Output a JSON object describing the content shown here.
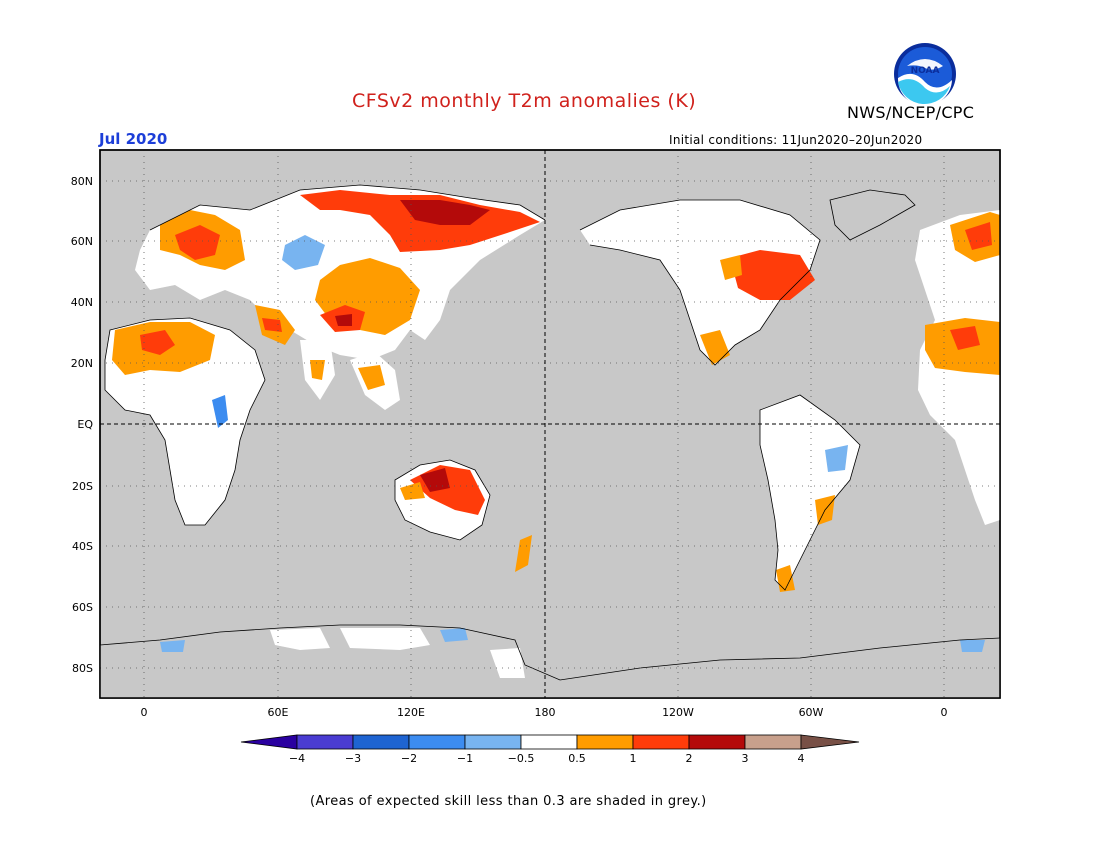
{
  "header": {
    "title": "CFSv2 monthly T2m anomalies (K)",
    "month": "Jul 2020",
    "initial_conditions": "Initial conditions: 11Jun2020–20Jun2020",
    "agency": "NWS/NCEP/CPC",
    "logo_icon": "noaa-logo-icon"
  },
  "map": {
    "lat_labels": [
      "80N",
      "60N",
      "40N",
      "20N",
      "EQ",
      "20S",
      "40S",
      "60S",
      "80S"
    ],
    "lon_labels": [
      "0",
      "60E",
      "120E",
      "180",
      "120W",
      "60W",
      "0"
    ],
    "colors": {
      "background_low_skill": "#c8c8c8",
      "ocean": "#c8c8c8",
      "land_neutral": "#ffffff",
      "warm_0_5_1": "#ff9c00",
      "warm_1_2": "#ff3c0a",
      "warm_2_3": "#b40a0a",
      "cool_m1_m0_5": "#78b4f0",
      "cool_m2_m1": "#3c8cf0"
    }
  },
  "colorbar": {
    "tick_labels": [
      "−4",
      "−3",
      "−2",
      "−1",
      "−0.5",
      "0.5",
      "1",
      "2",
      "3",
      "4"
    ],
    "bins": [
      {
        "color": "#2a00a0"
      },
      {
        "color": "#4a3cd2"
      },
      {
        "color": "#1e64d2"
      },
      {
        "color": "#3c8cf0"
      },
      {
        "color": "#78b4f0"
      },
      {
        "color": "#ffffff"
      },
      {
        "color": "#ff9c00"
      },
      {
        "color": "#ff3c0a"
      },
      {
        "color": "#b40a0a"
      },
      {
        "color": "#c8a08c"
      },
      {
        "color": "#785046"
      }
    ]
  },
  "footnote": "(Areas of expected skill less than 0.3 are shaded in grey.)"
}
